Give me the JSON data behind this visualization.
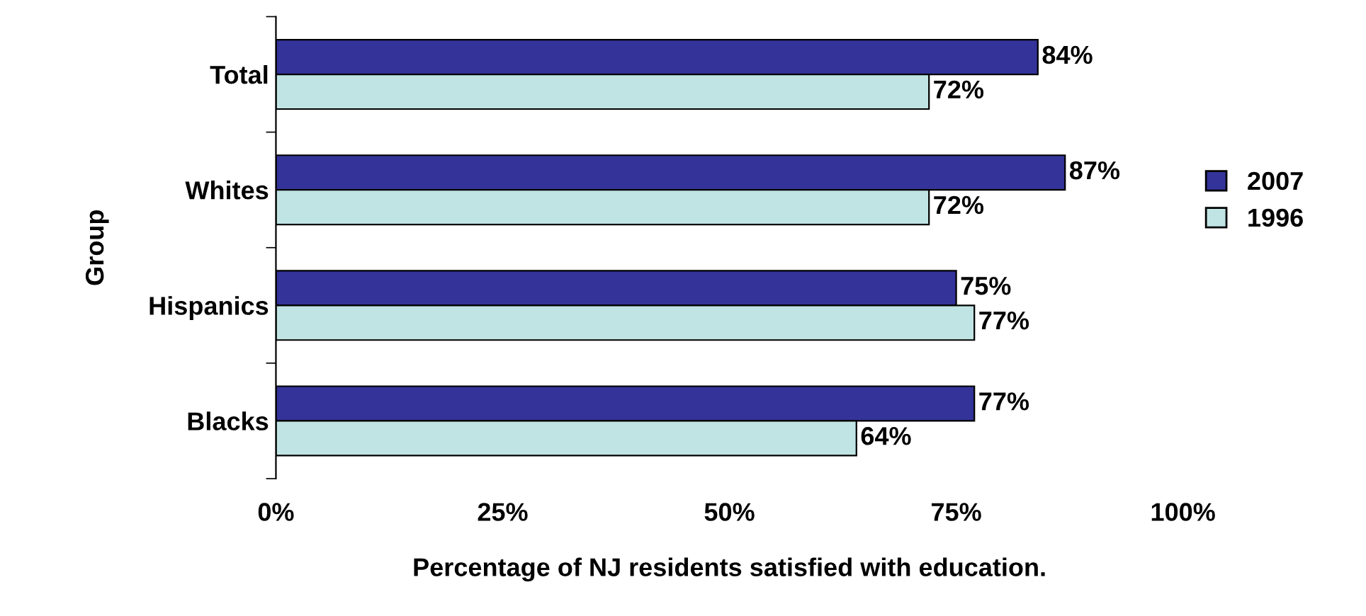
{
  "chart_data": {
    "type": "bar",
    "orientation": "horizontal",
    "xlabel": "Percentage of NJ residents satisfied with education.",
    "ylabel": "Group",
    "categories": [
      "Total",
      "Whites",
      "Hispanics",
      "Blacks"
    ],
    "series": [
      {
        "name": "2007",
        "color": "#333399",
        "values": [
          84,
          87,
          75,
          77
        ],
        "value_labels": [
          "84%",
          "87%",
          "75%",
          "77%"
        ]
      },
      {
        "name": "1996",
        "color": "#c0e4e4",
        "values": [
          72,
          72,
          77,
          64
        ],
        "value_labels": [
          "72%",
          "72%",
          "77%",
          "64%"
        ]
      }
    ],
    "xlim": [
      0,
      100
    ],
    "xticks": [
      {
        "value": 0,
        "label": "0%"
      },
      {
        "value": 25,
        "label": "25%"
      },
      {
        "value": 50,
        "label": "50%"
      },
      {
        "value": 75,
        "label": "75%"
      },
      {
        "value": 100,
        "label": "100%"
      }
    ],
    "grid": false,
    "legend": "right"
  }
}
